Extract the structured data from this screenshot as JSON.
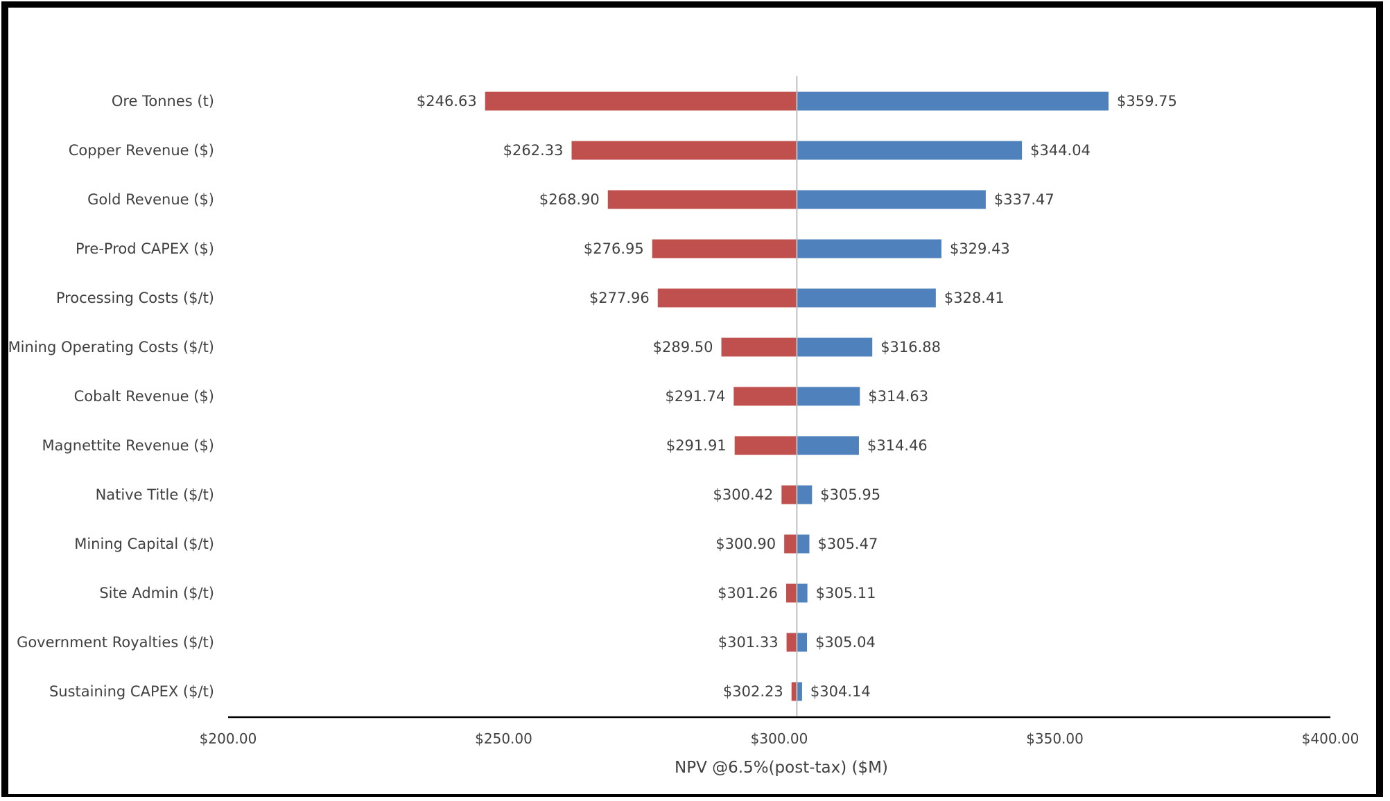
{
  "chart_data": {
    "type": "bar",
    "orientation": "horizontal",
    "variant": "tornado",
    "categories": [
      "Ore Tonnes (t)",
      "Copper Revenue ($)",
      "Gold Revenue ($)",
      "Pre-Prod CAPEX ($)",
      "Processing Costs ($/t)",
      "Mining Operating Costs ($/t)",
      "Cobalt Revenue ($)",
      "Magnettite Revenue ($)",
      "Native Title ($/t)",
      "Mining Capital ($/t)",
      "Site Admin ($/t)",
      "Government Royalties ($/t)",
      "Sustaining CAPEX ($/t)"
    ],
    "base": 303.19,
    "series": [
      {
        "color": "#c0504d",
        "values": [
          246.63,
          262.33,
          268.9,
          276.95,
          277.96,
          289.5,
          291.74,
          291.91,
          300.42,
          300.9,
          301.26,
          301.33,
          302.23
        ],
        "labels": [
          "$246.63",
          "$262.33",
          "$268.90",
          "$276.95",
          "$277.96",
          "$289.50",
          "$291.74",
          "$291.91",
          "$300.42",
          "$300.90",
          "$301.26",
          "$301.33",
          "$302.23"
        ]
      },
      {
        "color": "#4f81bd",
        "values": [
          359.75,
          344.04,
          337.47,
          329.43,
          328.41,
          316.88,
          314.63,
          314.46,
          305.95,
          305.47,
          305.11,
          305.04,
          304.14
        ],
        "labels": [
          "$359.75",
          "$344.04",
          "$337.47",
          "$329.43",
          "$328.41",
          "$316.88",
          "$314.63",
          "$314.46",
          "$305.95",
          "$305.47",
          "$305.11",
          "$305.04",
          "$304.14"
        ]
      }
    ],
    "xlim": [
      200,
      400
    ],
    "xticks": [
      200,
      250,
      300,
      350,
      400
    ],
    "xtick_labels": [
      "$200.00",
      "$250.00",
      "$300.00",
      "$350.00",
      "$400.00"
    ],
    "xlabel": "NPV @6.5%(post-tax) ($M)",
    "title": "",
    "grid": false,
    "legend": "none"
  }
}
